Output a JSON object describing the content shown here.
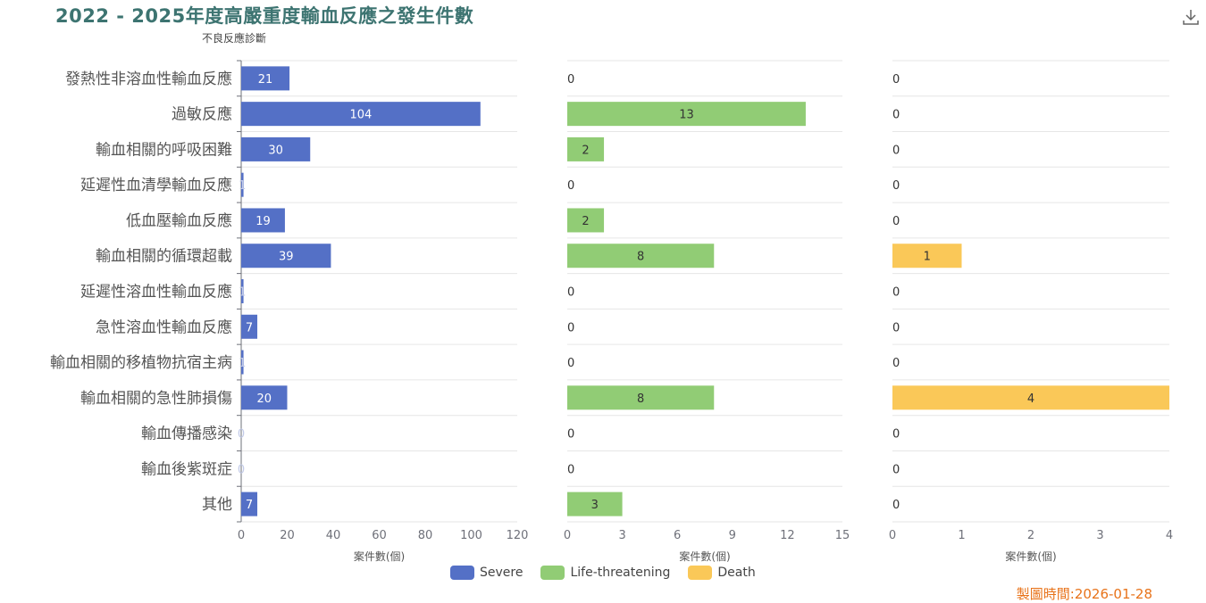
{
  "title": "2022 - 2025年度高嚴重度輸血反應之發生件數",
  "footer": "製圖時間:2026-01-28",
  "toolbar": {
    "download_icon": "download-icon"
  },
  "chart_data": {
    "type": "bar",
    "orientation": "horizontal",
    "title": "2022 - 2025年度高嚴重度輸血反應之發生件數",
    "ylabel": "不良反應診斷",
    "xlabel": "案件數(個)",
    "categories": [
      "發熱性非溶血性輸血反應",
      "過敏反應",
      "輸血相關的呼吸困難",
      "延遲性血清學輸血反應",
      "低血壓輸血反應",
      "輸血相關的循環超載",
      "延遲性溶血性輸血反應",
      "急性溶血性輸血反應",
      "輸血相關的移植物抗宿主病",
      "輸血相關的急性肺損傷",
      "輸血傳播感染",
      "輸血後紫斑症",
      "其他"
    ],
    "series": [
      {
        "name": "Severe",
        "color": "#5470c6",
        "xlim": [
          0,
          120
        ],
        "ticks": [
          "0",
          "20",
          "40",
          "60",
          "80",
          "100",
          "120"
        ],
        "values": [
          21,
          104,
          30,
          1,
          19,
          39,
          1,
          7,
          1,
          20,
          0,
          0,
          7
        ]
      },
      {
        "name": "Life-threatening",
        "color": "#91cc75",
        "xlim": [
          0,
          15
        ],
        "ticks": [
          "0",
          "3",
          "6",
          "9",
          "12",
          "15"
        ],
        "values": [
          0,
          13,
          2,
          0,
          2,
          8,
          0,
          0,
          0,
          8,
          0,
          0,
          3
        ]
      },
      {
        "name": "Death",
        "color": "#fac858",
        "xlim": [
          0,
          4
        ],
        "ticks": [
          "0",
          "1",
          "2",
          "3",
          "4"
        ],
        "values": [
          0,
          0,
          0,
          0,
          0,
          1,
          0,
          0,
          0,
          4,
          0,
          0,
          0
        ]
      }
    ],
    "grid": true,
    "legend_position": "bottom-center"
  }
}
